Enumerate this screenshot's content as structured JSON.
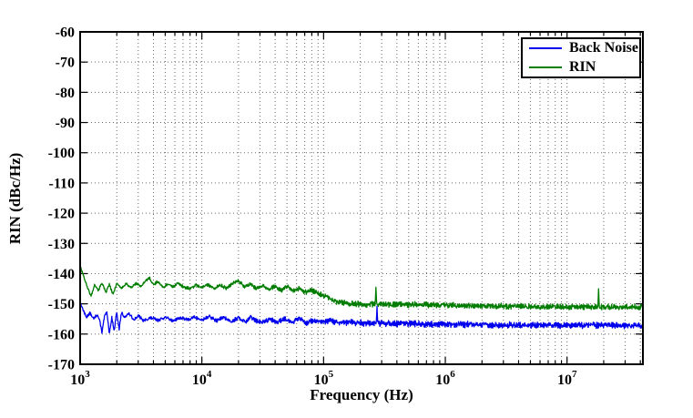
{
  "chart_data": {
    "type": "line",
    "title": "",
    "xlabel": "Frequency (Hz)",
    "ylabel": "RIN (dBc/Hz)",
    "x_scale": "log",
    "grid": "on",
    "legend_position": "top-right",
    "xlim": [
      1000,
      42000000
    ],
    "ylim": [
      -170,
      -60
    ],
    "x_tick_exponents": [
      3,
      4,
      5,
      6,
      7
    ],
    "x_tick_base": "10",
    "y_tick_labels": [
      "-60",
      "-70",
      "-80",
      "-90",
      "-100",
      "-110",
      "-120",
      "-130",
      "-140",
      "-150",
      "-160",
      "-170"
    ],
    "series": [
      {
        "name": "Back Noise",
        "color": "#0000ee",
        "keypoints": [
          [
            3.0,
            -149.5
          ],
          [
            3.02,
            -151.5
          ],
          [
            3.05,
            -154.5
          ],
          [
            3.08,
            -153.0
          ],
          [
            3.11,
            -155.0
          ],
          [
            3.14,
            -153.5
          ],
          [
            3.16,
            -155.5
          ],
          [
            3.18,
            -159.5
          ],
          [
            3.2,
            -154.0
          ],
          [
            3.22,
            -153.0
          ],
          [
            3.24,
            -159.8
          ],
          [
            3.26,
            -154.5
          ],
          [
            3.28,
            -159.0
          ],
          [
            3.3,
            -152.5
          ],
          [
            3.32,
            -158.5
          ],
          [
            3.34,
            -152.8
          ],
          [
            3.36,
            -154.5
          ],
          [
            3.4,
            -153.2
          ],
          [
            3.44,
            -155.2
          ],
          [
            3.48,
            -154.0
          ],
          [
            3.52,
            -155.6
          ],
          [
            3.58,
            -154.6
          ],
          [
            3.64,
            -155.4
          ],
          [
            3.7,
            -154.4
          ],
          [
            3.76,
            -155.6
          ],
          [
            3.82,
            -154.6
          ],
          [
            3.88,
            -155.2
          ],
          [
            3.94,
            -154.4
          ],
          [
            4.0,
            -155.4
          ],
          [
            4.06,
            -154.2
          ],
          [
            4.12,
            -155.6
          ],
          [
            4.18,
            -154.4
          ],
          [
            4.24,
            -155.8
          ],
          [
            4.3,
            -154.6
          ],
          [
            4.36,
            -156.0
          ],
          [
            4.4,
            -154.2
          ],
          [
            4.44,
            -155.6
          ],
          [
            4.5,
            -156.2
          ],
          [
            4.56,
            -155.0
          ],
          [
            4.62,
            -156.2
          ],
          [
            4.68,
            -154.8
          ],
          [
            4.74,
            -156.0
          ],
          [
            4.8,
            -154.8
          ],
          [
            4.86,
            -156.2
          ],
          [
            4.92,
            -155.4
          ],
          [
            4.98,
            -156.2
          ],
          [
            5.06,
            -155.6
          ],
          [
            5.14,
            -156.4
          ],
          [
            5.22,
            -156.0
          ],
          [
            5.32,
            -156.4
          ],
          [
            5.5,
            -156.5
          ],
          [
            5.8,
            -156.7
          ],
          [
            6.1,
            -156.8
          ],
          [
            6.5,
            -157.0
          ],
          [
            7.0,
            -157.1
          ],
          [
            7.62,
            -157.2
          ]
        ],
        "noise": [
          [
            3.0,
            0.45
          ],
          [
            4.0,
            0.55
          ],
          [
            4.7,
            0.85
          ],
          [
            5.2,
            1.05
          ],
          [
            7.62,
            1.0
          ]
        ],
        "spikes": [
          [
            5.44,
            -150.8
          ]
        ]
      },
      {
        "name": "RIN",
        "color": "#007d00",
        "keypoints": [
          [
            3.0,
            -137.5
          ],
          [
            3.03,
            -141.0
          ],
          [
            3.06,
            -144.5
          ],
          [
            3.09,
            -147.5
          ],
          [
            3.12,
            -143.5
          ],
          [
            3.15,
            -145.5
          ],
          [
            3.18,
            -143.0
          ],
          [
            3.21,
            -146.3
          ],
          [
            3.24,
            -143.6
          ],
          [
            3.27,
            -147.0
          ],
          [
            3.3,
            -143.2
          ],
          [
            3.34,
            -144.8
          ],
          [
            3.38,
            -143.4
          ],
          [
            3.42,
            -144.6
          ],
          [
            3.46,
            -143.2
          ],
          [
            3.5,
            -144.2
          ],
          [
            3.54,
            -142.4
          ],
          [
            3.57,
            -141.4
          ],
          [
            3.6,
            -143.6
          ],
          [
            3.64,
            -142.6
          ],
          [
            3.68,
            -144.6
          ],
          [
            3.72,
            -143.4
          ],
          [
            3.76,
            -144.4
          ],
          [
            3.8,
            -143.2
          ],
          [
            3.85,
            -144.4
          ],
          [
            3.9,
            -145.0
          ],
          [
            3.95,
            -143.8
          ],
          [
            4.0,
            -144.6
          ],
          [
            4.05,
            -143.6
          ],
          [
            4.1,
            -145.0
          ],
          [
            4.15,
            -143.8
          ],
          [
            4.2,
            -144.8
          ],
          [
            4.25,
            -143.2
          ],
          [
            4.3,
            -142.4
          ],
          [
            4.35,
            -144.4
          ],
          [
            4.4,
            -143.4
          ],
          [
            4.45,
            -145.0
          ],
          [
            4.5,
            -143.8
          ],
          [
            4.55,
            -145.2
          ],
          [
            4.6,
            -144.2
          ],
          [
            4.65,
            -145.6
          ],
          [
            4.7,
            -144.2
          ],
          [
            4.75,
            -145.8
          ],
          [
            4.8,
            -144.8
          ],
          [
            4.85,
            -146.2
          ],
          [
            4.9,
            -145.4
          ],
          [
            4.95,
            -146.6
          ],
          [
            5.0,
            -147.2
          ],
          [
            5.05,
            -148.2
          ],
          [
            5.1,
            -149.2
          ],
          [
            5.2,
            -149.8
          ],
          [
            5.35,
            -150.2
          ],
          [
            5.5,
            -150.1
          ],
          [
            5.8,
            -150.3
          ],
          [
            6.1,
            -150.5
          ],
          [
            6.5,
            -150.8
          ],
          [
            7.0,
            -151.0
          ],
          [
            7.62,
            -151.1
          ]
        ],
        "noise": [
          [
            3.0,
            0.4
          ],
          [
            4.0,
            0.5
          ],
          [
            4.6,
            0.7
          ],
          [
            5.0,
            0.85
          ],
          [
            5.3,
            0.95
          ],
          [
            7.62,
            0.9
          ]
        ],
        "spikes": [
          [
            5.43,
            -144.5
          ],
          [
            7.26,
            -145.0
          ]
        ]
      }
    ]
  },
  "legend": {
    "entries": [
      {
        "label": "Back Noise",
        "color": "#0000ee"
      },
      {
        "label": "RIN",
        "color": "#007d00"
      }
    ]
  }
}
